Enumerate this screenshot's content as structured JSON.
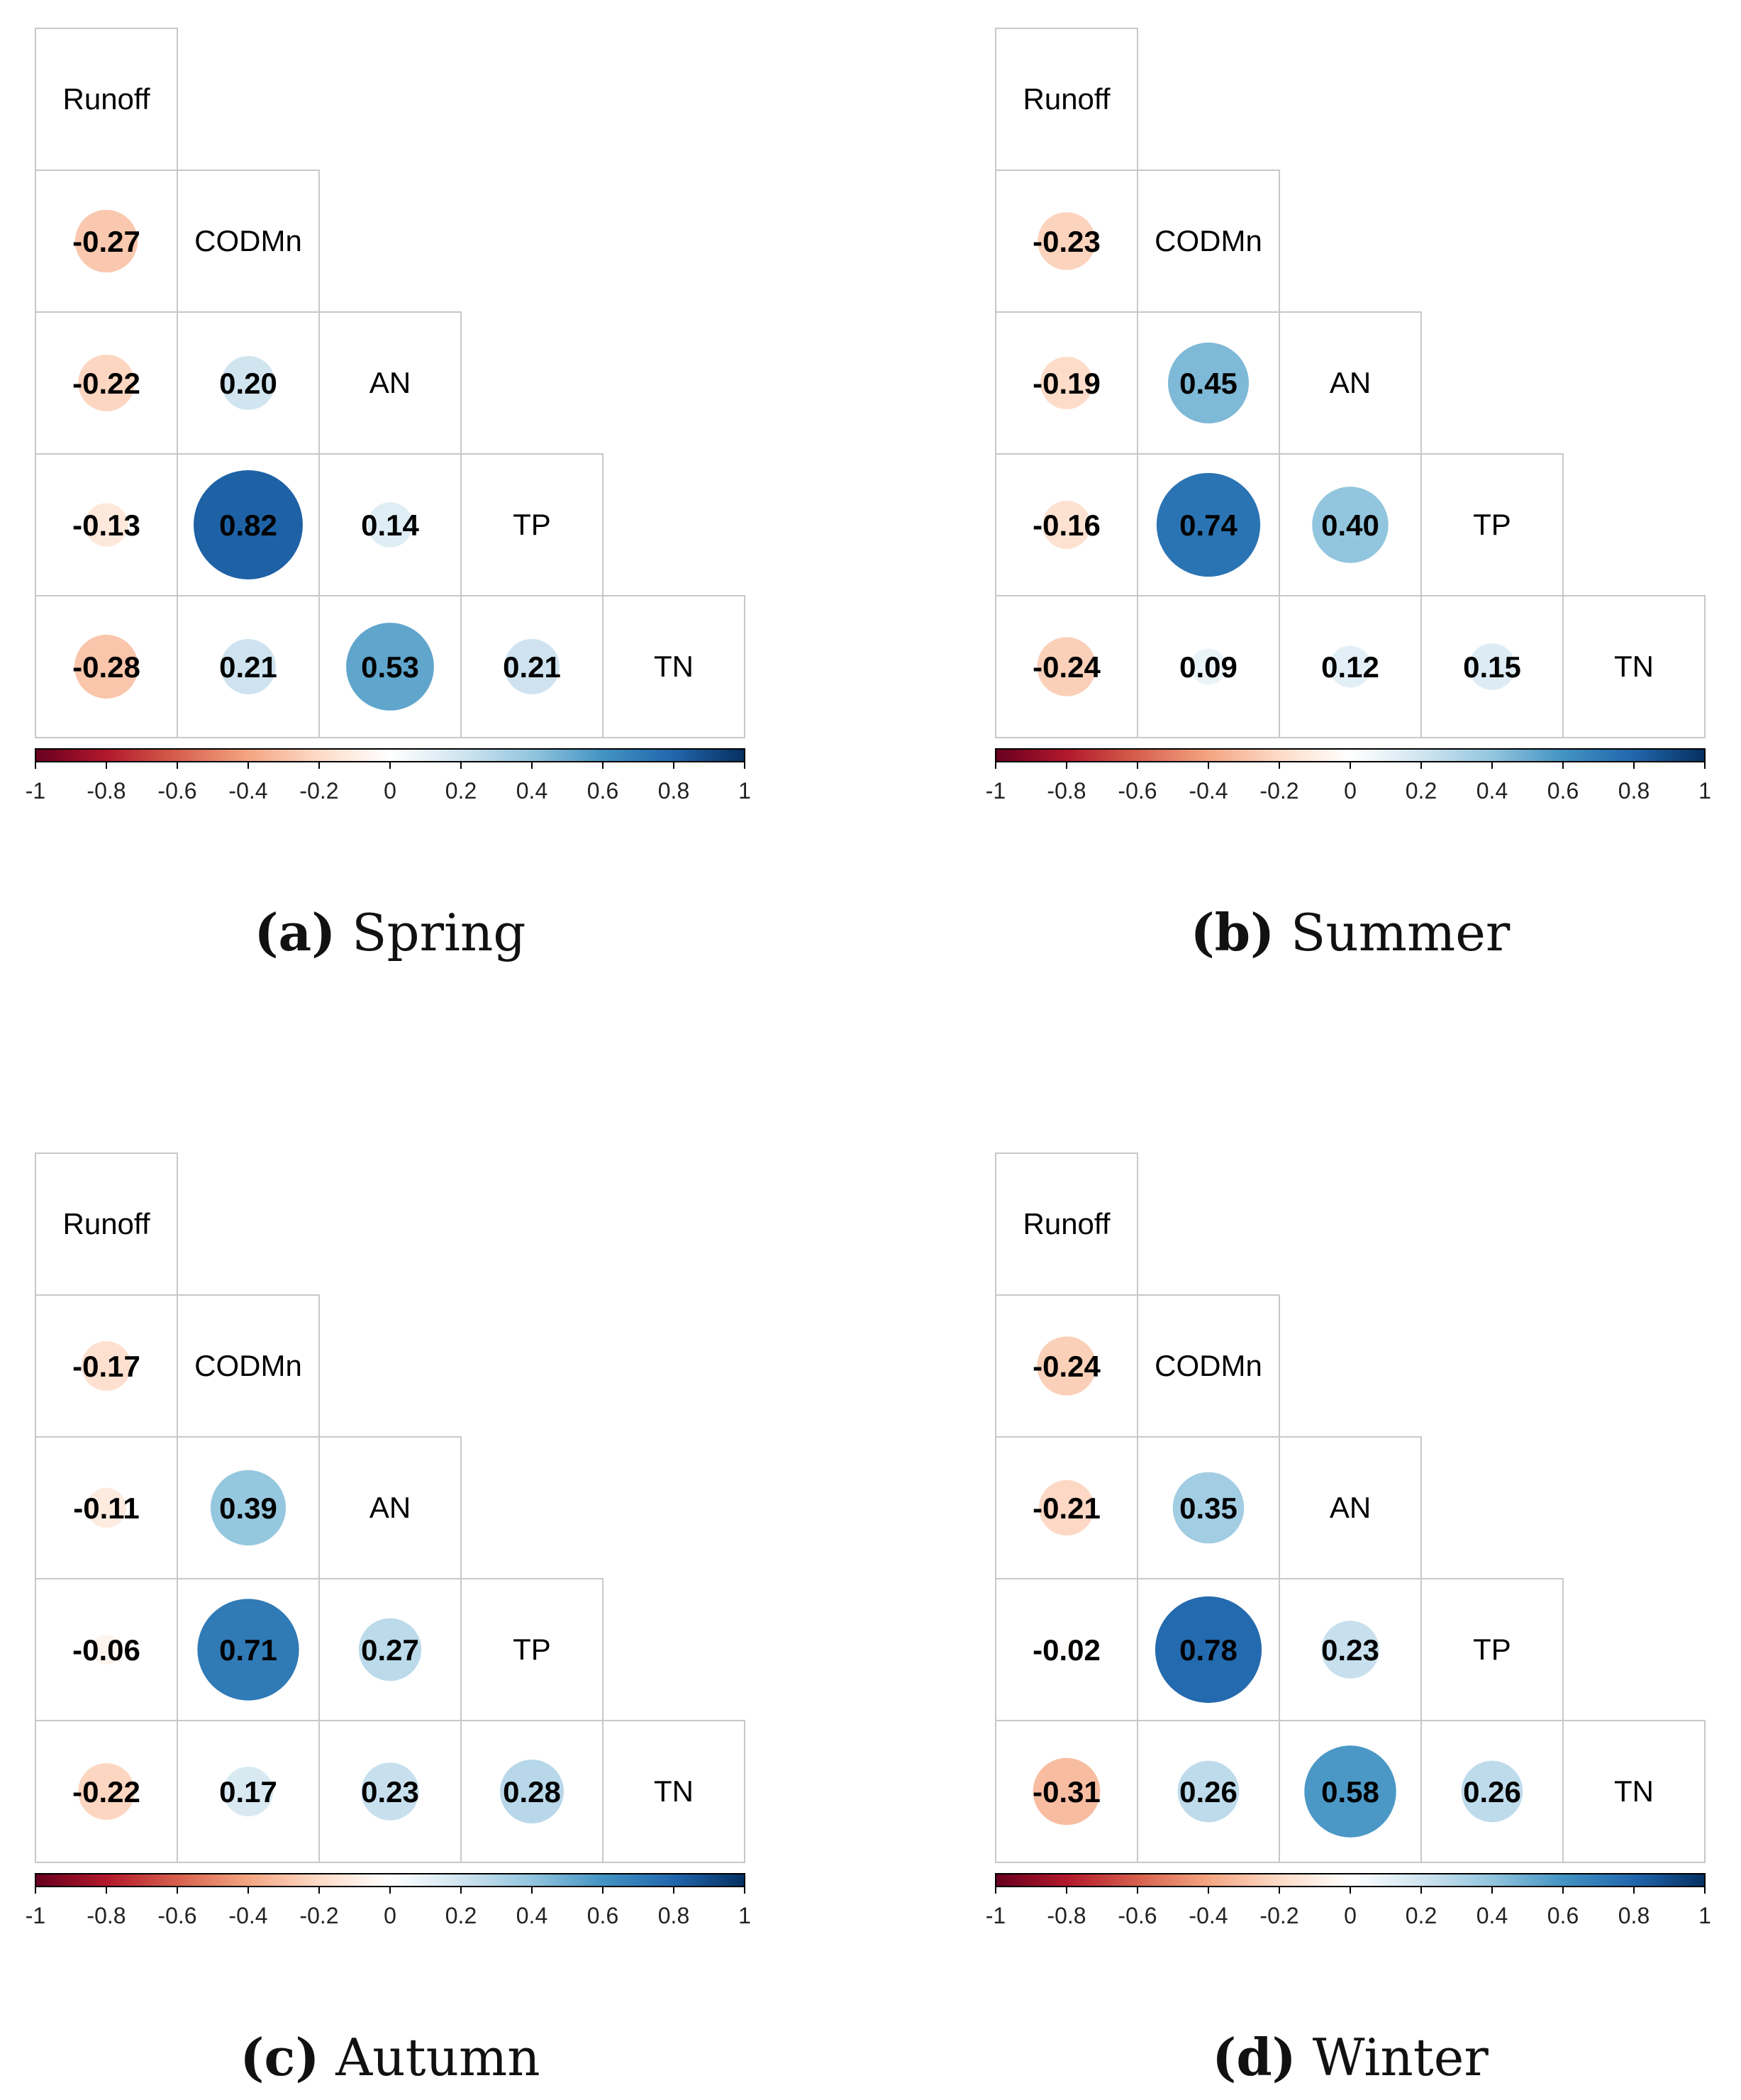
{
  "chart_data": [
    {
      "type": "heatmap",
      "variables": [
        "Runoff",
        "CODMn",
        "AN",
        "TP",
        "TN"
      ],
      "lower_triangle": [
        [],
        [
          -0.27
        ],
        [
          -0.22,
          0.2
        ],
        [
          -0.13,
          0.82,
          0.14
        ],
        [
          -0.28,
          0.21,
          0.53,
          0.21
        ]
      ],
      "colorbar_ticks": [
        "-1",
        "-0.8",
        "-0.6",
        "-0.4",
        "-0.2",
        "0",
        "0.2",
        "0.4",
        "0.6",
        "0.8",
        "1"
      ],
      "caption_letter": "(a)",
      "caption_label": "Spring"
    },
    {
      "type": "heatmap",
      "variables": [
        "Runoff",
        "CODMn",
        "AN",
        "TP",
        "TN"
      ],
      "lower_triangle": [
        [],
        [
          -0.23
        ],
        [
          -0.19,
          0.45
        ],
        [
          -0.16,
          0.74,
          0.4
        ],
        [
          -0.24,
          0.09,
          0.12,
          0.15
        ]
      ],
      "colorbar_ticks": [
        "-1",
        "-0.8",
        "-0.6",
        "-0.4",
        "-0.2",
        "0",
        "0.2",
        "0.4",
        "0.6",
        "0.8",
        "1"
      ],
      "caption_letter": "(b)",
      "caption_label": "Summer"
    },
    {
      "type": "heatmap",
      "variables": [
        "Runoff",
        "CODMn",
        "AN",
        "TP",
        "TN"
      ],
      "lower_triangle": [
        [],
        [
          -0.17
        ],
        [
          -0.11,
          0.39
        ],
        [
          -0.06,
          0.71,
          0.27
        ],
        [
          -0.22,
          0.17,
          0.23,
          0.28
        ]
      ],
      "colorbar_ticks": [
        "-1",
        "-0.8",
        "-0.6",
        "-0.4",
        "-0.2",
        "0",
        "0.2",
        "0.4",
        "0.6",
        "0.8",
        "1"
      ],
      "caption_letter": "(c)",
      "caption_label": "Autumn"
    },
    {
      "type": "heatmap",
      "variables": [
        "Runoff",
        "CODMn",
        "AN",
        "TP",
        "TN"
      ],
      "lower_triangle": [
        [],
        [
          -0.24
        ],
        [
          -0.21,
          0.35
        ],
        [
          -0.02,
          0.78,
          0.23
        ],
        [
          -0.31,
          0.26,
          0.58,
          0.26
        ]
      ],
      "colorbar_ticks": [
        "-1",
        "-0.8",
        "-0.6",
        "-0.4",
        "-0.2",
        "0",
        "0.2",
        "0.4",
        "0.6",
        "0.8",
        "1"
      ],
      "caption_letter": "(d)",
      "caption_label": "Winter"
    }
  ],
  "colors": {
    "scale": [
      "#67001F",
      "#B2182B",
      "#D6604D",
      "#F4A582",
      "#FDDBC7",
      "#FFFFFF",
      "#D1E5F0",
      "#92C5DE",
      "#4393C3",
      "#2166AC",
      "#053061"
    ],
    "grid": "#c8c8c8",
    "text": "#000000"
  }
}
